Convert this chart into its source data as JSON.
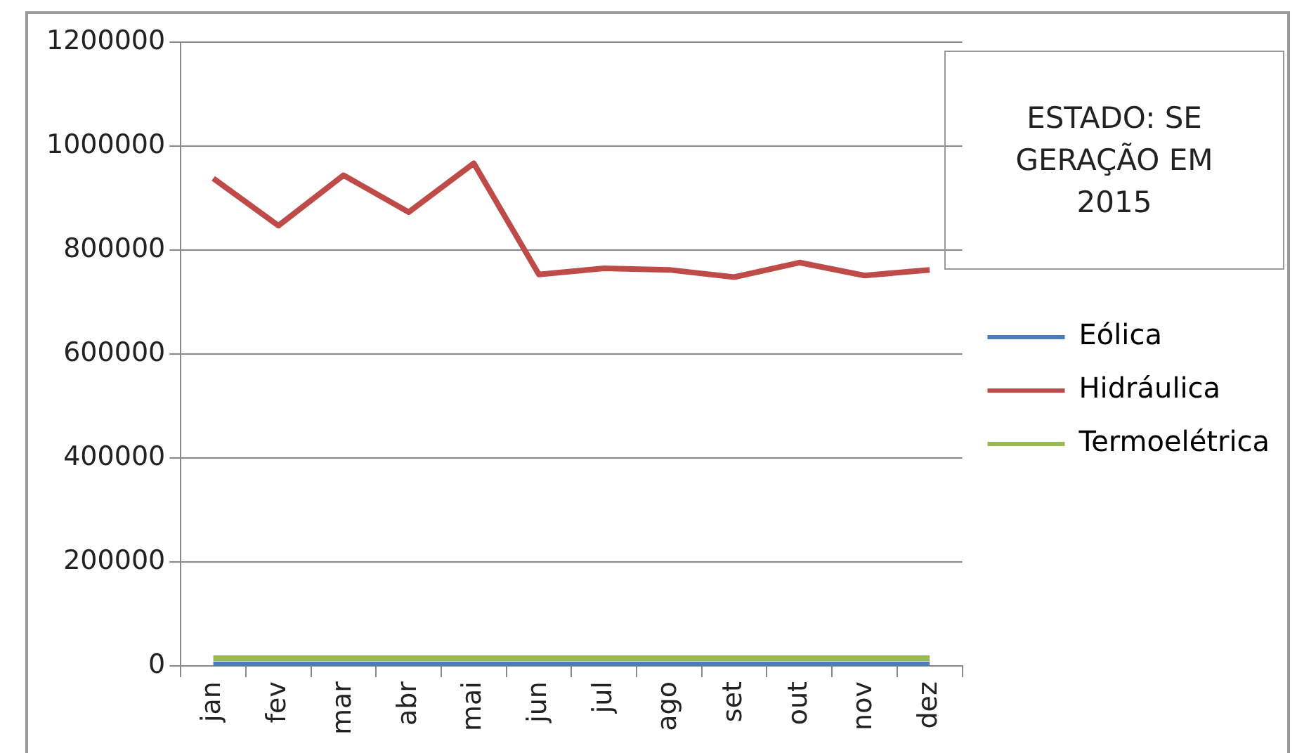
{
  "chart_data": {
    "type": "line",
    "title": "ESTADO: SE GERAÇÃO EM 2015",
    "categories": [
      "jan",
      "fev",
      "mar",
      "abr",
      "mai",
      "jun",
      "jul",
      "ago",
      "set",
      "out",
      "nov",
      "dez"
    ],
    "series": [
      {
        "name": "Eólica",
        "color": "#4a7ebb",
        "values": [
          3000,
          3000,
          3000,
          3000,
          3000,
          3000,
          3000,
          3000,
          3000,
          3000,
          3000,
          3000
        ]
      },
      {
        "name": "Hidráulica",
        "color": "#be4b48",
        "values": [
          938000,
          847000,
          944000,
          873000,
          967000,
          753000,
          765000,
          762000,
          748000,
          776000,
          751000,
          762000
        ]
      },
      {
        "name": "Termoelétrica",
        "color": "#98b954",
        "values": [
          15000,
          15000,
          15000,
          15000,
          15000,
          15000,
          15000,
          15000,
          15000,
          15000,
          15000,
          15000
        ]
      }
    ],
    "ylim": [
      0,
      1200000
    ],
    "yticks": [
      0,
      200000,
      400000,
      600000,
      800000,
      1000000,
      1200000
    ],
    "grid": "y",
    "legend": "right",
    "marker": "none",
    "line_style": "solid"
  }
}
